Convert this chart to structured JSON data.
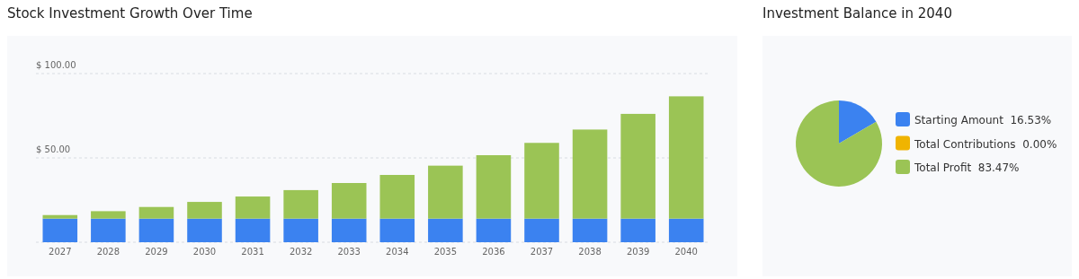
{
  "chart_data": [
    {
      "type": "bar",
      "title": "Stock Investment Growth Over Time",
      "stacked": true,
      "grid": "y",
      "categories": [
        "2027",
        "2028",
        "2029",
        "2030",
        "2031",
        "2032",
        "2033",
        "2034",
        "2035",
        "2036",
        "2037",
        "2038",
        "2039",
        "2040"
      ],
      "series": [
        {
          "color": "#3b82f0",
          "values": [
            14,
            14,
            14,
            14,
            14,
            14,
            14,
            14,
            14,
            14,
            14,
            14,
            14,
            14
          ]
        },
        {
          "color": "#9bc455",
          "values": [
            2.1,
            4.4,
            6.9,
            9.9,
            13.1,
            16.9,
            21.1,
            25.9,
            31.4,
            37.6,
            44.9,
            52.8,
            62.1,
            72.5
          ]
        }
      ],
      "ylim": [
        0,
        100
      ],
      "yticks": [
        {
          "value": 0,
          "label": null
        },
        {
          "value": 50,
          "label": "$ 50.00"
        },
        {
          "value": 100,
          "label": "$ 100.00"
        }
      ]
    },
    {
      "type": "pie",
      "title": "Investment Balance in 2040",
      "legend": "right",
      "value_labels": [
        "16.53%",
        "0.00%",
        "83.47%"
      ],
      "categories": [
        "Starting Amount",
        "Total Contributions",
        "Total Profit"
      ],
      "values": [
        16.53,
        0,
        83.47
      ],
      "colors": [
        "#3b82f0",
        "#f0b400",
        "#9bc455"
      ]
    }
  ]
}
